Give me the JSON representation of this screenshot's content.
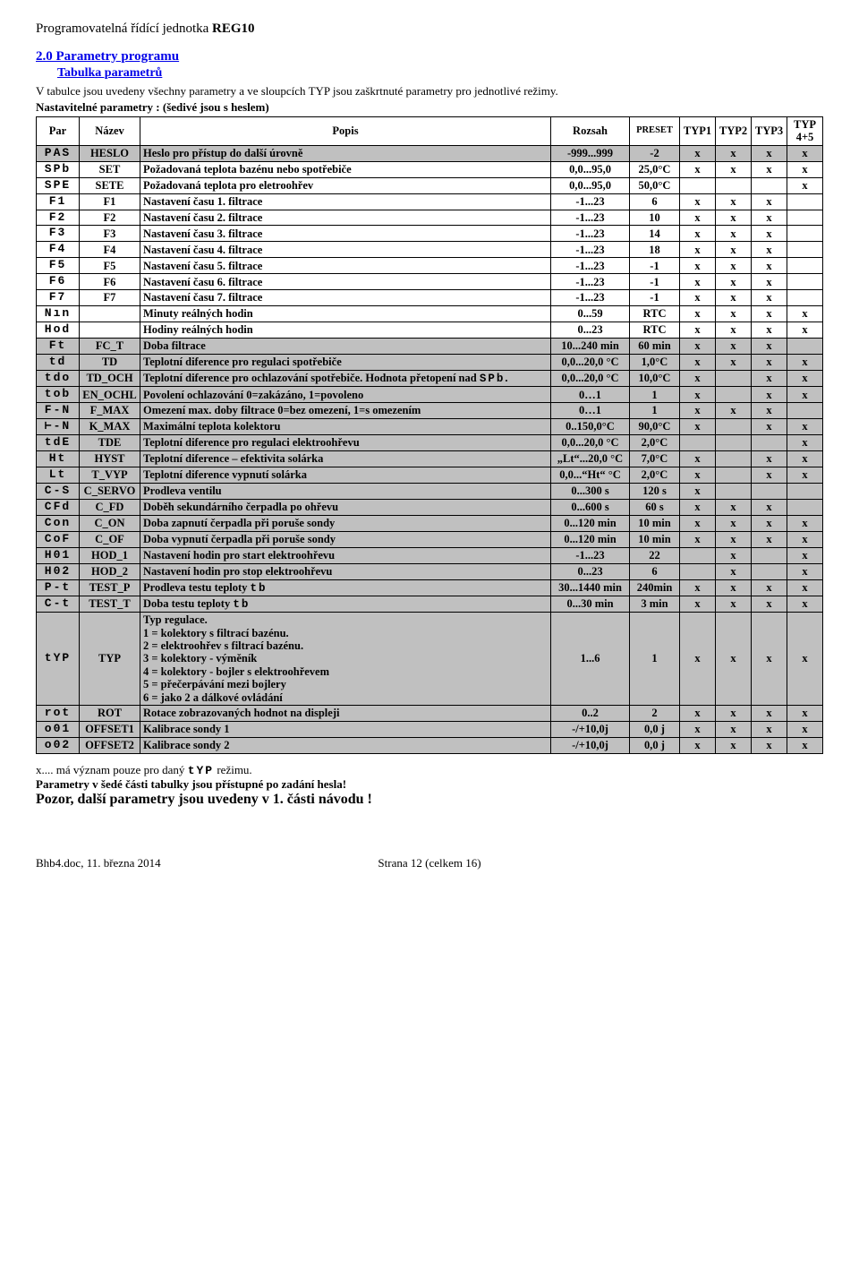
{
  "header": {
    "prefix": "Programovatelná řídící jednotka ",
    "bold": "REG10"
  },
  "section_heading": "2.0 Parametry programu",
  "sub_heading": "Tabulka parametrů",
  "intro_line": "V tabulce jsou uvedeny všechny parametry a ve sloupcích TYP jsou zaškrtnuté parametry pro jednotlivé režimy.",
  "intro_bold": "Nastavitelné parametry : (šedivé jsou s heslem)",
  "columns": [
    "Par",
    "Název",
    "Popis",
    "Rozsah",
    "PRESET",
    "TYP1",
    "TYP2",
    "TYP3",
    "TYP 4+5"
  ],
  "rows": [
    {
      "grey": true,
      "seg": "PAS",
      "name": "HESLO",
      "popis": "Heslo pro přístup do další úrovně",
      "rozsah": "-999...999",
      "preset": "-2",
      "t1": "x",
      "t2": "x",
      "t3": "x",
      "t4": "x"
    },
    {
      "grey": false,
      "seg": "SPb",
      "name": "SET",
      "popis": "Požadovaná teplota bazénu nebo spotřebiče",
      "rozsah": "0,0...95,0",
      "preset": "25,0°C",
      "t1": "x",
      "t2": "x",
      "t3": "x",
      "t4": "x"
    },
    {
      "grey": false,
      "seg": "SPE",
      "name": "SETE",
      "popis": "Požadovaná teplota pro eletroohřev",
      "rozsah": "0,0...95,0",
      "preset": "50,0°C",
      "t1": "",
      "t2": "",
      "t3": "",
      "t4": "x"
    },
    {
      "grey": false,
      "seg": "F1",
      "name": "F1",
      "popis": "Nastavení času 1. filtrace",
      "rozsah": "-1...23",
      "preset": "6",
      "t1": "x",
      "t2": "x",
      "t3": "x",
      "t4": ""
    },
    {
      "grey": false,
      "seg": "F2",
      "name": "F2",
      "popis": "Nastavení času 2. filtrace",
      "rozsah": "-1...23",
      "preset": "10",
      "t1": "x",
      "t2": "x",
      "t3": "x",
      "t4": ""
    },
    {
      "grey": false,
      "seg": "F3",
      "name": "F3",
      "popis": "Nastavení času 3. filtrace",
      "rozsah": "-1...23",
      "preset": "14",
      "t1": "x",
      "t2": "x",
      "t3": "x",
      "t4": ""
    },
    {
      "grey": false,
      "seg": "F4",
      "name": "F4",
      "popis": "Nastavení času 4. filtrace",
      "rozsah": "-1...23",
      "preset": "18",
      "t1": "x",
      "t2": "x",
      "t3": "x",
      "t4": ""
    },
    {
      "grey": false,
      "seg": "F5",
      "name": "F5",
      "popis": "Nastavení času 5. filtrace",
      "rozsah": "-1...23",
      "preset": "-1",
      "t1": "x",
      "t2": "x",
      "t3": "x",
      "t4": ""
    },
    {
      "grey": false,
      "seg": "F6",
      "name": "F6",
      "popis": "Nastavení času 6. filtrace",
      "rozsah": "-1...23",
      "preset": "-1",
      "t1": "x",
      "t2": "x",
      "t3": "x",
      "t4": ""
    },
    {
      "grey": false,
      "seg": "F7",
      "name": "F7",
      "popis": "Nastavení času 7. filtrace",
      "rozsah": "-1...23",
      "preset": "-1",
      "t1": "x",
      "t2": "x",
      "t3": "x",
      "t4": ""
    },
    {
      "grey": false,
      "seg": "Nın",
      "name": "",
      "popis": "Minuty reálných hodin",
      "rozsah": "0...59",
      "preset": "RTC",
      "t1": "x",
      "t2": "x",
      "t3": "x",
      "t4": "x"
    },
    {
      "grey": false,
      "seg": "Hod",
      "name": "",
      "popis": "Hodiny reálných hodin",
      "rozsah": "0...23",
      "preset": "RTC",
      "t1": "x",
      "t2": "x",
      "t3": "x",
      "t4": "x"
    },
    {
      "grey": true,
      "seg": "Ft",
      "name": "FC_T",
      "popis": "Doba filtrace",
      "rozsah": "10...240 min",
      "preset": "60 min",
      "t1": "x",
      "t2": "x",
      "t3": "x",
      "t4": ""
    },
    {
      "grey": true,
      "seg": "td",
      "name": "TD",
      "popis": "Teplotní diference pro regulaci spotřebiče",
      "rozsah": "0,0...20,0 °C",
      "preset": "1,0°C",
      "t1": "x",
      "t2": "x",
      "t3": "x",
      "t4": "x"
    },
    {
      "grey": true,
      "seg": "tdo",
      "name": "TD_OCH",
      "popis_html": "Teplotní diference pro ochlazování spotřebiče. Hodnota přetopení nad <span class='seg-inline'>SPb</span>.",
      "rozsah": "0,0...20,0 °C",
      "preset": "10,0°C",
      "t1": "x",
      "t2": "",
      "t3": "x",
      "t4": "x"
    },
    {
      "grey": true,
      "seg": "tob",
      "name": "EN_OCHL",
      "popis": "Povolení ochlazování 0=zakázáno, 1=povoleno",
      "rozsah": "0…1",
      "preset": "1",
      "t1": "x",
      "t2": "",
      "t3": "x",
      "t4": "x"
    },
    {
      "grey": true,
      "seg": "F-N",
      "name": "F_MAX",
      "popis": "Omezení max. doby filtrace 0=bez omezení, 1=s omezením",
      "rozsah": "0…1",
      "preset": "1",
      "t1": "x",
      "t2": "x",
      "t3": "x",
      "t4": ""
    },
    {
      "grey": true,
      "seg": "⊢-N",
      "name": "K_MAX",
      "popis": "Maximální teplota kolektoru",
      "rozsah": "0..150,0°C",
      "preset": "90,0°C",
      "t1": "x",
      "t2": "",
      "t3": "x",
      "t4": "x"
    },
    {
      "grey": true,
      "seg": "tdE",
      "name": "TDE",
      "popis": "Teplotní diference pro regulaci elektroohřevu",
      "rozsah": "0,0...20,0 °C",
      "preset": "2,0°C",
      "t1": "",
      "t2": "",
      "t3": "",
      "t4": "x"
    },
    {
      "grey": true,
      "seg": "Ht",
      "name": "HYST",
      "popis": "Teplotní diference – efektivita solárka",
      "rozsah": "„Lt“...20,0 °C",
      "preset": "7,0°C",
      "t1": "x",
      "t2": "",
      "t3": "x",
      "t4": "x"
    },
    {
      "grey": true,
      "seg": "Lt",
      "name": "T_VYP",
      "popis": "Teplotní diference vypnutí solárka",
      "rozsah": "0,0...“Ht“ °C",
      "preset": "2,0°C",
      "t1": "x",
      "t2": "",
      "t3": "x",
      "t4": "x"
    },
    {
      "grey": true,
      "seg": "C-S",
      "name": "C_SERVO",
      "popis": "Prodleva ventilu",
      "rozsah": "0...300 s",
      "preset": "120 s",
      "t1": "x",
      "t2": "",
      "t3": "",
      "t4": ""
    },
    {
      "grey": true,
      "seg": "CFd",
      "name": "C_FD",
      "popis": "Doběh sekundárního čerpadla po ohřevu",
      "rozsah": "0...600 s",
      "preset": "60 s",
      "t1": "x",
      "t2": "x",
      "t3": "x",
      "t4": ""
    },
    {
      "grey": true,
      "seg": "Con",
      "name": "C_ON",
      "popis": "Doba zapnutí čerpadla při poruše sondy",
      "rozsah": "0...120 min",
      "preset": "10 min",
      "t1": "x",
      "t2": "x",
      "t3": "x",
      "t4": "x"
    },
    {
      "grey": true,
      "seg": "CoF",
      "name": "C_OF",
      "popis": "Doba vypnutí čerpadla při poruše sondy",
      "rozsah": "0...120 min",
      "preset": "10 min",
      "t1": "x",
      "t2": "x",
      "t3": "x",
      "t4": "x"
    },
    {
      "grey": true,
      "seg": "H01",
      "name": "HOD_1",
      "popis": "Nastavení hodin pro start elektroohřevu",
      "rozsah": "-1...23",
      "preset": "22",
      "t1": "",
      "t2": "x",
      "t3": "",
      "t4": "x"
    },
    {
      "grey": true,
      "seg": "H02",
      "name": "HOD_2",
      "popis": "Nastavení hodin pro stop elektroohřevu",
      "rozsah": "0...23",
      "preset": "6",
      "t1": "",
      "t2": "x",
      "t3": "",
      "t4": "x"
    },
    {
      "grey": true,
      "seg": "P-t",
      "name": "TEST_P",
      "popis_html": "Prodleva testu teploty <span class='seg-inline'>tb</span>",
      "rozsah": "30...1440 min",
      "preset": "240min",
      "t1": "x",
      "t2": "x",
      "t3": "x",
      "t4": "x"
    },
    {
      "grey": true,
      "seg": "C-t",
      "name": "TEST_T",
      "popis_html": "Doba testu teploty <span class='seg-inline'>tb</span>",
      "rozsah": "0...30 min",
      "preset": "3 min",
      "t1": "x",
      "t2": "x",
      "t3": "x",
      "t4": "x"
    },
    {
      "grey": true,
      "seg": "tYP",
      "name": "TYP",
      "popis_html": "Typ regulace.<br>1 = kolektory s filtrací bazénu.<br>2 = elektroohřev s filtrací bazénu.<br>3 = kolektory - výměník<br>4 = kolektory - bojler s elektroohřevem<br>5 = přečerpávání mezi bojlery<br>6 = jako 2 a dálkové ovládání",
      "rozsah": "1...6",
      "preset": "1",
      "t1": "x",
      "t2": "x",
      "t3": "x",
      "t4": "x"
    },
    {
      "grey": true,
      "seg": "rot",
      "name": "ROT",
      "popis": "Rotace zobrazovaných hodnot na displeji",
      "rozsah": "0..2",
      "preset": "2",
      "t1": "x",
      "t2": "x",
      "t3": "x",
      "t4": "x"
    },
    {
      "grey": true,
      "seg": "o01",
      "name": "OFFSET1",
      "popis": "Kalibrace sondy 1",
      "rozsah": "-/+10,0j",
      "preset": "0,0 j",
      "t1": "x",
      "t2": "x",
      "t3": "x",
      "t4": "x"
    },
    {
      "grey": true,
      "seg": "o02",
      "name": "OFFSET2",
      "popis": "Kalibrace sondy 2",
      "rozsah": "-/+10,0j",
      "preset": "0,0 j",
      "t1": "x",
      "t2": "x",
      "t3": "x",
      "t4": "x"
    }
  ],
  "footnote": {
    "l1_prefix": "x.... má význam pouze pro daný ",
    "l1_seg": "tYP",
    "l1_suffix": " režimu.",
    "l2": "Parametry v šedé části tabulky jsou přístupné po zadání hesla!",
    "l3": "Pozor, další parametry jsou uvedeny v 1. části návodu !"
  },
  "footer": {
    "left": "Bhb4.doc, 11. března 2014",
    "center": "Strana 12 (celkem 16)"
  }
}
